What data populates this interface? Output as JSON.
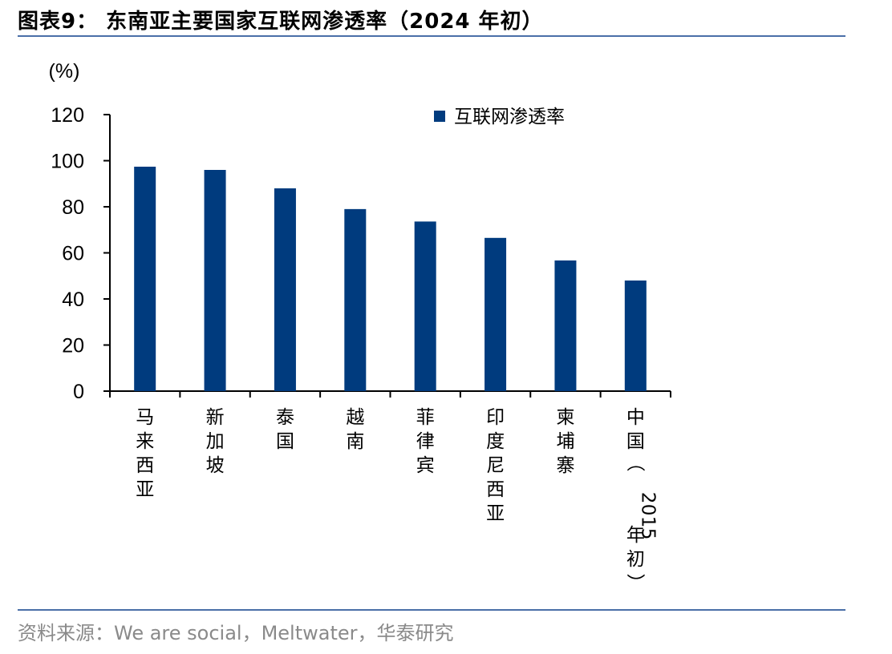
{
  "header": {
    "title": "图表9：  东南亚主要国家互联网渗透率（2024 年初）"
  },
  "footer": {
    "source": "资料来源：We are social，Meltwater，华泰研究"
  },
  "colors": {
    "bar": "#003b7e",
    "rule": "#4a6fa8"
  },
  "chart_data": {
    "type": "bar",
    "unit_label": "(%)",
    "categories": [
      "马来西亚",
      "新加坡",
      "泰国",
      "越南",
      "菲律宾",
      "印度尼西亚",
      "柬埔寨",
      "中国（2015年初）"
    ],
    "series": [
      {
        "name": "互联网渗透率",
        "values": [
          97.4,
          96.0,
          88.0,
          79.0,
          73.6,
          66.5,
          56.7,
          48.0
        ]
      }
    ],
    "ylim": [
      0,
      120
    ],
    "yticks": [
      0,
      20,
      40,
      60,
      80,
      100,
      120
    ],
    "grid": false,
    "legend_position": "top-right"
  }
}
